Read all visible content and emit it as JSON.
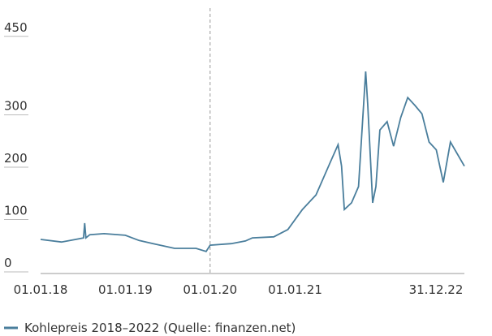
{
  "chart_data": {
    "type": "line",
    "x": [
      "2018-01-01",
      "2018-04-01",
      "2018-06-01",
      "2018-07-05",
      "2018-07-10",
      "2018-07-15",
      "2018-08-01",
      "2018-10-01",
      "2019-01-01",
      "2019-03-01",
      "2019-05-01",
      "2019-08-01",
      "2019-11-01",
      "2019-12-15",
      "2020-01-01",
      "2020-04-01",
      "2020-06-01",
      "2020-07-01",
      "2020-10-01",
      "2020-12-01",
      "2021-02-01",
      "2021-04-01",
      "2021-06-01",
      "2021-07-05",
      "2021-07-20",
      "2021-08-01",
      "2021-09-01",
      "2021-10-01",
      "2021-11-01",
      "2021-11-10",
      "2021-12-01",
      "2021-12-15",
      "2022-01-01",
      "2022-02-01",
      "2022-03-01",
      "2022-04-01",
      "2022-05-01",
      "2022-06-01",
      "2022-07-01",
      "2022-08-01",
      "2022-09-01",
      "2022-10-01",
      "2022-11-01",
      "2022-12-31"
    ],
    "series": [
      {
        "name": "Kohlepreis 2018–2022 (Quelle: finanzen.net)",
        "color": "#4a7e9c",
        "values": [
          62,
          57,
          62,
          65,
          93,
          65,
          71,
          73,
          70,
          60,
          54,
          45,
          45,
          39,
          51,
          54,
          59,
          65,
          67,
          81,
          119,
          147,
          209,
          243,
          202,
          119,
          132,
          163,
          383,
          318,
          132,
          163,
          271,
          287,
          240,
          295,
          333,
          318,
          302,
          248,
          233,
          171,
          248,
          202
        ]
      }
    ],
    "xlim": [
      "2018-01-01",
      "2022-12-31"
    ],
    "xticks": [
      {
        "value": "2018-01-01",
        "label": "01.01.18"
      },
      {
        "value": "2019-01-01",
        "label": "01.01.19"
      },
      {
        "value": "2020-01-01",
        "label": "01.01.20"
      },
      {
        "value": "2021-01-01",
        "label": "01.01.21"
      },
      {
        "value": "2022-12-31",
        "label": "31.12.22"
      }
    ],
    "ylim": [
      0,
      450
    ],
    "yticks": [
      0,
      100,
      200,
      300,
      450
    ],
    "marker_x": "2020-01-01"
  }
}
